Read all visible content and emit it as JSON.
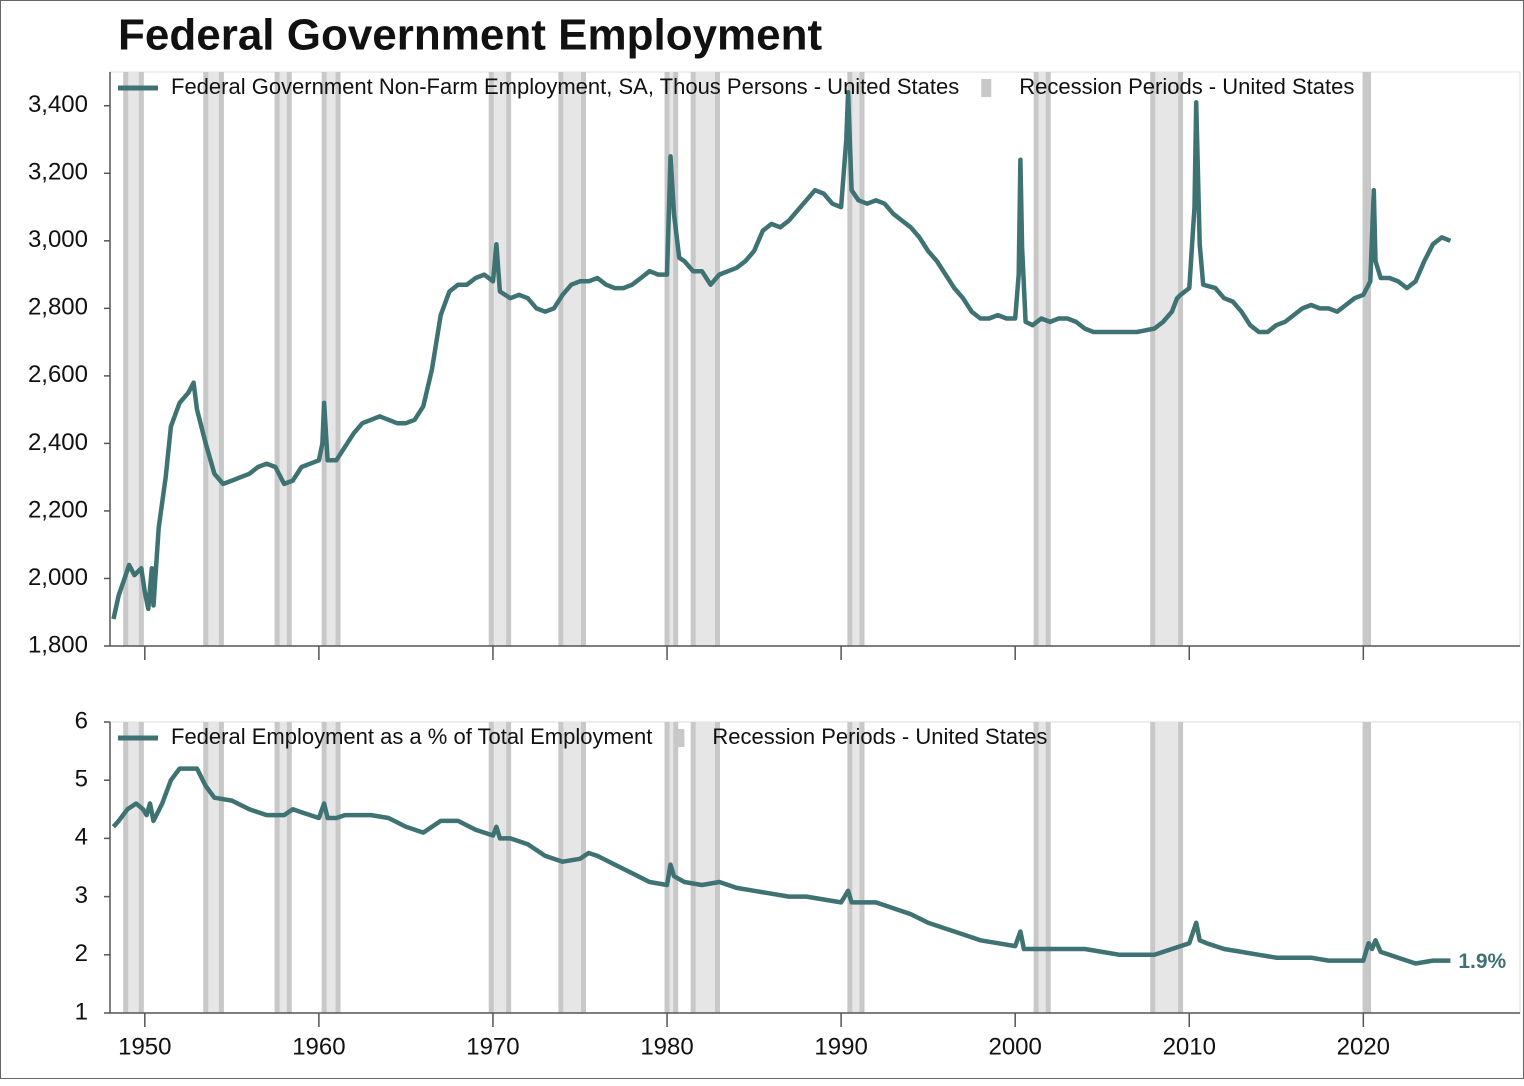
{
  "chart_data": [
    {
      "type": "line",
      "title": "Federal Government Employment",
      "xlim": [
        1948,
        2029
      ],
      "xticks": [
        1950,
        1960,
        1970,
        1980,
        1990,
        2000,
        2010,
        2020
      ],
      "ylim": [
        1800,
        3500
      ],
      "yticks": [
        {
          "value": 1800,
          "label": "1,800"
        },
        {
          "value": 2000,
          "label": "2,000"
        },
        {
          "value": 2200,
          "label": "2,200"
        },
        {
          "value": 2400,
          "label": "2,400"
        },
        {
          "value": 2600,
          "label": "2,600"
        },
        {
          "value": 2800,
          "label": "2,800"
        },
        {
          "value": 3000,
          "label": "3,000"
        },
        {
          "value": 3200,
          "label": "3,200"
        },
        {
          "value": 3400,
          "label": "3,400"
        }
      ],
      "legend": "top-left",
      "recessions": {
        "name": "Recession Periods - United States",
        "color": "#c8c8c8",
        "periods": [
          [
            1948.9,
            1949.8
          ],
          [
            1953.5,
            1954.4
          ],
          [
            1957.6,
            1958.3
          ],
          [
            1960.3,
            1961.1
          ],
          [
            1969.9,
            1970.9
          ],
          [
            1973.9,
            1975.2
          ],
          [
            1980.0,
            1980.5
          ],
          [
            1981.5,
            1982.9
          ],
          [
            1990.5,
            1991.2
          ],
          [
            2001.2,
            2001.9
          ],
          [
            2007.9,
            2009.5
          ],
          [
            2020.1,
            2020.3
          ]
        ]
      },
      "series": [
        {
          "name": "Federal Government Non-Farm Employment, SA, Thous Persons - United States",
          "color": "#3f7272",
          "x": [
            1948.2,
            1948.5,
            1948.9,
            1949.1,
            1949.4,
            1949.8,
            1950.0,
            1950.2,
            1950.4,
            1950.5,
            1950.8,
            1951.2,
            1951.5,
            1952.0,
            1952.5,
            1952.8,
            1953.0,
            1953.5,
            1954.0,
            1954.5,
            1955.0,
            1955.5,
            1956.0,
            1956.5,
            1957.0,
            1957.5,
            1958.0,
            1958.5,
            1959.0,
            1959.5,
            1960.0,
            1960.2,
            1960.3,
            1960.5,
            1961.0,
            1961.5,
            1962.0,
            1962.5,
            1963.0,
            1963.5,
            1964.0,
            1964.5,
            1965.0,
            1965.5,
            1966.0,
            1966.5,
            1967.0,
            1967.5,
            1968.0,
            1968.5,
            1969.0,
            1969.5,
            1970.0,
            1970.2,
            1970.4,
            1971.0,
            1971.5,
            1972.0,
            1972.5,
            1973.0,
            1973.5,
            1974.0,
            1974.5,
            1975.0,
            1975.5,
            1976.0,
            1976.5,
            1977.0,
            1977.5,
            1978.0,
            1978.5,
            1979.0,
            1979.5,
            1980.0,
            1980.2,
            1980.4,
            1980.7,
            1981.0,
            1981.5,
            1982.0,
            1982.5,
            1983.0,
            1983.5,
            1984.0,
            1984.5,
            1985.0,
            1985.5,
            1986.0,
            1986.5,
            1987.0,
            1987.5,
            1988.0,
            1988.5,
            1989.0,
            1989.5,
            1990.0,
            1990.3,
            1990.4,
            1990.6,
            1991.0,
            1991.5,
            1992.0,
            1992.5,
            1993.0,
            1993.5,
            1994.0,
            1994.5,
            1995.0,
            1995.5,
            1996.0,
            1996.5,
            1997.0,
            1997.5,
            1998.0,
            1998.5,
            1999.0,
            1999.5,
            2000.0,
            2000.2,
            2000.3,
            2000.4,
            2000.6,
            2001.0,
            2001.5,
            2002.0,
            2002.5,
            2003.0,
            2003.5,
            2004.0,
            2004.5,
            2005.0,
            2006.0,
            2007.0,
            2008.0,
            2008.5,
            2009.0,
            2009.3,
            2009.5,
            2010.0,
            2010.3,
            2010.4,
            2010.6,
            2010.8,
            2011.5,
            2012.0,
            2012.5,
            2013.0,
            2013.5,
            2014.0,
            2014.5,
            2015.0,
            2015.5,
            2016.0,
            2016.5,
            2017.0,
            2017.5,
            2018.0,
            2018.5,
            2019.0,
            2019.5,
            2020.0,
            2020.4,
            2020.6,
            2020.7,
            2021.0,
            2021.5,
            2022.0,
            2022.5,
            2023.0,
            2023.5,
            2024.0,
            2024.5,
            2025.0
          ],
          "values": [
            1880,
            1950,
            2010,
            2040,
            2010,
            2030,
            1960,
            1910,
            2030,
            1920,
            2150,
            2300,
            2450,
            2520,
            2550,
            2580,
            2500,
            2400,
            2310,
            2280,
            2290,
            2300,
            2310,
            2330,
            2340,
            2330,
            2280,
            2290,
            2330,
            2340,
            2350,
            2400,
            2520,
            2350,
            2350,
            2390,
            2430,
            2460,
            2470,
            2480,
            2470,
            2460,
            2460,
            2470,
            2510,
            2620,
            2780,
            2850,
            2870,
            2870,
            2890,
            2900,
            2880,
            2990,
            2850,
            2830,
            2840,
            2830,
            2800,
            2790,
            2800,
            2840,
            2870,
            2880,
            2880,
            2890,
            2870,
            2860,
            2860,
            2870,
            2890,
            2910,
            2900,
            2900,
            3250,
            3080,
            2950,
            2940,
            2910,
            2910,
            2870,
            2900,
            2910,
            2920,
            2940,
            2970,
            3030,
            3050,
            3040,
            3060,
            3090,
            3120,
            3150,
            3140,
            3110,
            3100,
            3300,
            3440,
            3150,
            3120,
            3110,
            3120,
            3110,
            3080,
            3060,
            3040,
            3010,
            2970,
            2940,
            2900,
            2860,
            2830,
            2790,
            2770,
            2770,
            2780,
            2770,
            2770,
            2900,
            3240,
            2980,
            2760,
            2750,
            2770,
            2760,
            2770,
            2770,
            2760,
            2740,
            2730,
            2730,
            2730,
            2730,
            2740,
            2760,
            2790,
            2830,
            2840,
            2860,
            3100,
            3410,
            2990,
            2870,
            2860,
            2830,
            2820,
            2790,
            2750,
            2730,
            2730,
            2750,
            2760,
            2780,
            2800,
            2810,
            2800,
            2800,
            2790,
            2810,
            2830,
            2840,
            2880,
            3150,
            2940,
            2890,
            2890,
            2880,
            2860,
            2880,
            2940,
            2990,
            3010,
            3000
          ]
        }
      ]
    },
    {
      "type": "line",
      "xlim": [
        1948,
        2029
      ],
      "xticks": [
        1950,
        1960,
        1970,
        1980,
        1990,
        2000,
        2010,
        2020
      ],
      "ylim": [
        1,
        6
      ],
      "yticks": [
        1,
        2,
        3,
        4,
        5,
        6
      ],
      "legend": "top-left",
      "recessions": {
        "name": "Recession Periods - United States",
        "color": "#c8c8c8",
        "periods": [
          [
            1948.9,
            1949.8
          ],
          [
            1953.5,
            1954.4
          ],
          [
            1957.6,
            1958.3
          ],
          [
            1960.3,
            1961.1
          ],
          [
            1969.9,
            1970.9
          ],
          [
            1973.9,
            1975.2
          ],
          [
            1980.0,
            1980.5
          ],
          [
            1981.5,
            1982.9
          ],
          [
            1990.5,
            1991.2
          ],
          [
            2001.2,
            2001.9
          ],
          [
            2007.9,
            2009.5
          ],
          [
            2020.1,
            2020.3
          ]
        ]
      },
      "annotations": [
        {
          "x": 2025.0,
          "value": 1.9,
          "label": "1.9%"
        }
      ],
      "series": [
        {
          "name": "Federal Employment as a % of Total Employment",
          "color": "#3f7272",
          "x": [
            1948.2,
            1948.5,
            1949.0,
            1949.5,
            1949.9,
            1950.1,
            1950.3,
            1950.5,
            1951.0,
            1951.5,
            1952.0,
            1952.5,
            1953.0,
            1953.5,
            1954.0,
            1955.0,
            1956.0,
            1957.0,
            1958.0,
            1958.5,
            1959.0,
            1960.0,
            1960.3,
            1960.5,
            1961.0,
            1961.5,
            1963.0,
            1964.0,
            1965.0,
            1966.0,
            1966.5,
            1967.0,
            1968.0,
            1969.0,
            1970.0,
            1970.2,
            1970.4,
            1971.0,
            1972.0,
            1973.0,
            1974.0,
            1975.0,
            1975.5,
            1976.0,
            1977.0,
            1978.0,
            1979.0,
            1980.0,
            1980.2,
            1980.4,
            1981.0,
            1982.0,
            1983.0,
            1984.0,
            1985.0,
            1986.0,
            1987.0,
            1988.0,
            1989.0,
            1990.0,
            1990.4,
            1990.6,
            1992.0,
            1993.0,
            1994.0,
            1995.0,
            1996.0,
            1997.0,
            1998.0,
            1999.0,
            2000.0,
            2000.3,
            2000.5,
            2001.0,
            2002.0,
            2003.0,
            2004.0,
            2005.0,
            2006.0,
            2007.0,
            2008.0,
            2009.0,
            2009.5,
            2010.0,
            2010.4,
            2010.6,
            2011.0,
            2012.0,
            2013.0,
            2014.0,
            2015.0,
            2016.0,
            2017.0,
            2018.0,
            2019.0,
            2020.0,
            2020.3,
            2020.5,
            2020.7,
            2021.0,
            2022.0,
            2023.0,
            2024.0,
            2025.0
          ],
          "values": [
            4.2,
            4.3,
            4.5,
            4.6,
            4.5,
            4.4,
            4.6,
            4.3,
            4.6,
            5.0,
            5.2,
            5.2,
            5.2,
            4.9,
            4.7,
            4.65,
            4.5,
            4.4,
            4.4,
            4.5,
            4.45,
            4.35,
            4.6,
            4.35,
            4.35,
            4.4,
            4.4,
            4.35,
            4.2,
            4.1,
            4.2,
            4.3,
            4.3,
            4.15,
            4.05,
            4.2,
            4.0,
            4.0,
            3.9,
            3.7,
            3.6,
            3.65,
            3.75,
            3.7,
            3.55,
            3.4,
            3.25,
            3.2,
            3.55,
            3.35,
            3.25,
            3.2,
            3.25,
            3.15,
            3.1,
            3.05,
            3.0,
            3.0,
            2.95,
            2.9,
            3.1,
            2.9,
            2.9,
            2.8,
            2.7,
            2.55,
            2.45,
            2.35,
            2.25,
            2.2,
            2.15,
            2.4,
            2.1,
            2.1,
            2.1,
            2.1,
            2.1,
            2.05,
            2.0,
            2.0,
            2.0,
            2.1,
            2.15,
            2.2,
            2.55,
            2.25,
            2.2,
            2.1,
            2.05,
            2.0,
            1.95,
            1.95,
            1.95,
            1.9,
            1.9,
            1.9,
            2.2,
            2.1,
            2.25,
            2.05,
            1.95,
            1.85,
            1.9,
            1.9
          ]
        }
      ]
    }
  ]
}
